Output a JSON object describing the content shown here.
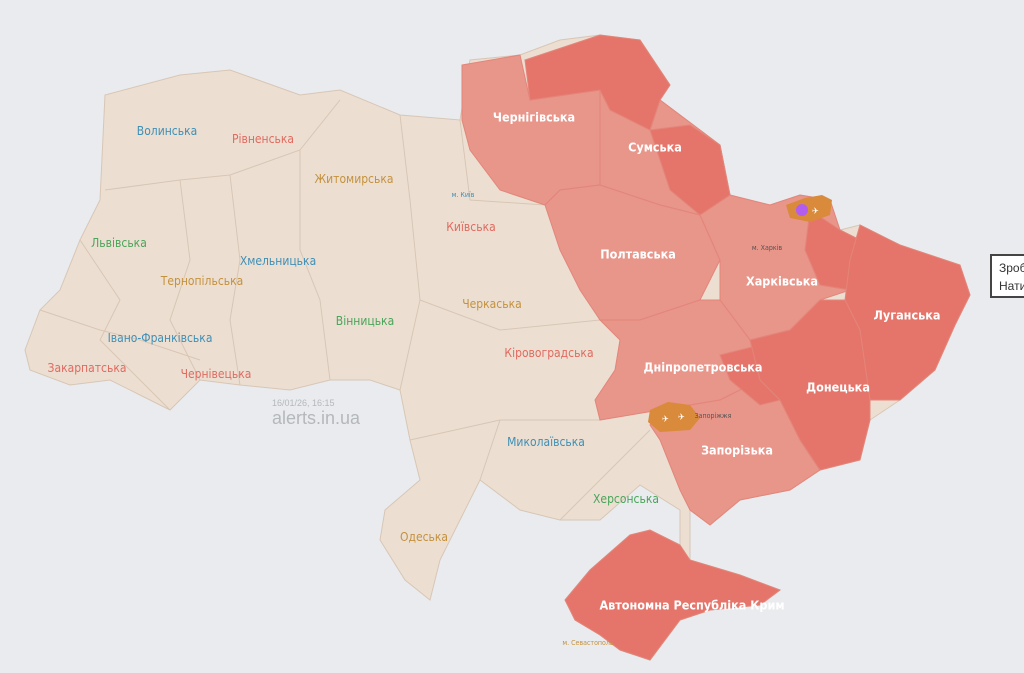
{
  "colors": {
    "background": "#e9ebee",
    "no_alert": "#ecdfd2",
    "alert": "#e8958a",
    "alert_strong": "#e5756a",
    "threat": "#d98a3a",
    "border": "#d8c6b5",
    "label_blue": "#3f8fb5",
    "label_red": "#e06a5f",
    "label_tan": "#c4913d",
    "label_green": "#4aa45a"
  },
  "watermark": {
    "timestamp": "16/01/26, 16:15",
    "site": "alerts.in.ua"
  },
  "tooltip": {
    "line1": "Зроб",
    "line2": "Нати"
  },
  "regions": [
    {
      "name": "Волинська",
      "status": "none",
      "color": "blue"
    },
    {
      "name": "Рівненська",
      "status": "none",
      "color": "red"
    },
    {
      "name": "Житомирська",
      "status": "none",
      "color": "tan"
    },
    {
      "name": "Львівська",
      "status": "none",
      "color": "green"
    },
    {
      "name": "Тернопільська",
      "status": "none",
      "color": "tan"
    },
    {
      "name": "Хмельницька",
      "status": "none",
      "color": "blue"
    },
    {
      "name": "Вінницька",
      "status": "none",
      "color": "green"
    },
    {
      "name": "Івано-Франківська",
      "status": "none",
      "color": "blue"
    },
    {
      "name": "Закарпатська",
      "status": "none",
      "color": "red"
    },
    {
      "name": "Чернівецька",
      "status": "none",
      "color": "red"
    },
    {
      "name": "Київська",
      "status": "none",
      "color": "red"
    },
    {
      "name": "Черкаська",
      "status": "none",
      "color": "tan"
    },
    {
      "name": "Кіровоградська",
      "status": "none",
      "color": "red"
    },
    {
      "name": "Миколаївська",
      "status": "none",
      "color": "blue"
    },
    {
      "name": "Херсонська",
      "status": "none",
      "color": "green"
    },
    {
      "name": "Одеська",
      "status": "none",
      "color": "tan"
    },
    {
      "name": "Чернігівська",
      "status": "alert"
    },
    {
      "name": "Сумська",
      "status": "alert"
    },
    {
      "name": "Полтавська",
      "status": "alert"
    },
    {
      "name": "Харківська",
      "status": "alert"
    },
    {
      "name": "Луганська",
      "status": "alert"
    },
    {
      "name": "Донецька",
      "status": "alert"
    },
    {
      "name": "Дніпропетровська",
      "status": "alert"
    },
    {
      "name": "Запорізька",
      "status": "alert"
    },
    {
      "name": "Автономна Республіка Крим",
      "status": "alert"
    }
  ],
  "cities": [
    {
      "name": "м. Київ"
    },
    {
      "name": "м. Харків"
    },
    {
      "name": "Запоріжжя"
    },
    {
      "name": "м. Севастополь"
    }
  ]
}
